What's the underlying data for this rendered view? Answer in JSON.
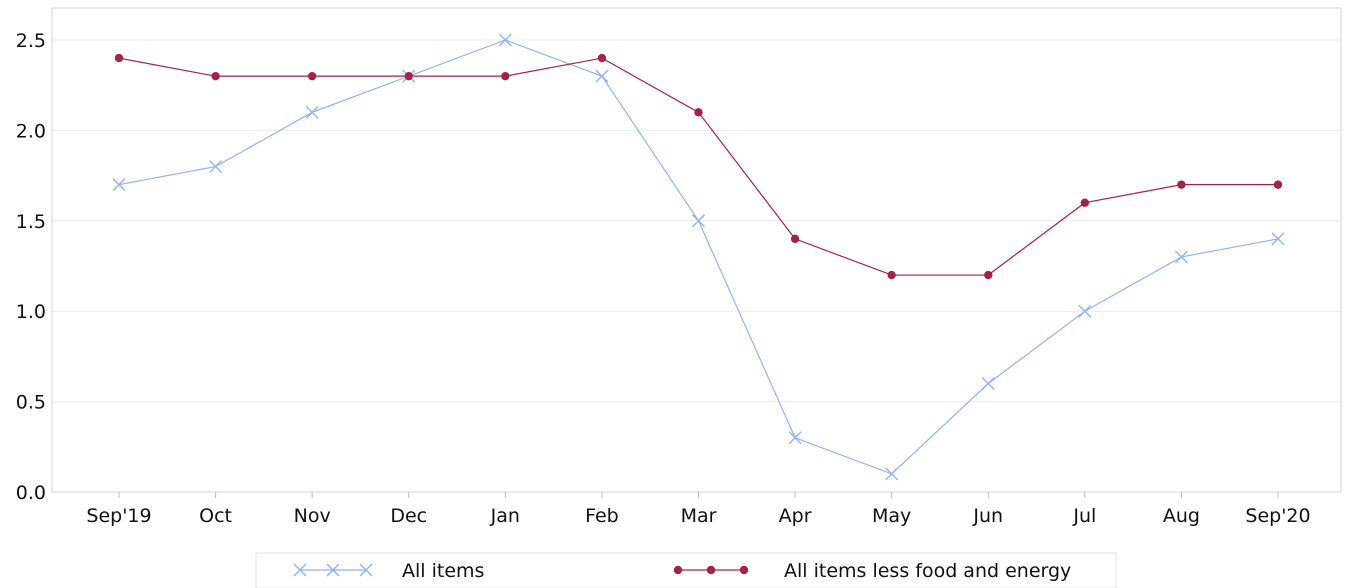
{
  "chart_data": {
    "type": "line",
    "categories": [
      "Sep'19",
      "Oct",
      "Nov",
      "Dec",
      "Jan",
      "Feb",
      "Mar",
      "Apr",
      "May",
      "Jun",
      "Jul",
      "Aug",
      "Sep'20"
    ],
    "series": [
      {
        "name": "All items",
        "values": [
          1.7,
          1.8,
          2.1,
          2.3,
          2.5,
          2.3,
          1.5,
          0.3,
          0.1,
          0.6,
          1.0,
          1.3,
          1.4
        ],
        "color": "#8fb4f0",
        "marker": "x"
      },
      {
        "name": "All items less food and energy",
        "values": [
          2.4,
          2.3,
          2.3,
          2.3,
          2.3,
          2.4,
          2.1,
          1.4,
          1.2,
          1.2,
          1.6,
          1.7,
          1.7
        ],
        "color": "#a3224a",
        "marker": "dot"
      }
    ],
    "yticks": [
      0.0,
      0.5,
      1.0,
      1.5,
      2.0,
      2.5
    ],
    "ytick_labels": [
      "0.0",
      "0.5",
      "1.0",
      "1.5",
      "2.0",
      "2.5"
    ],
    "ylim": [
      0,
      2.6
    ],
    "grid": true,
    "legend_position": "bottom",
    "title": "",
    "xlabel": "",
    "ylabel": ""
  }
}
